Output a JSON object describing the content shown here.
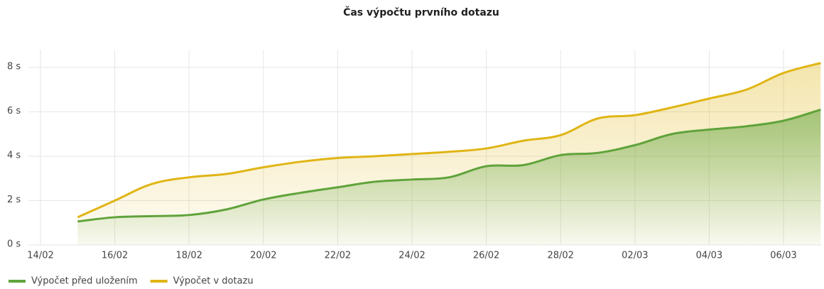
{
  "chart_data": {
    "type": "line",
    "title": "Čas výpočtu prvního dotazu",
    "categories": [
      "14/02",
      null,
      "16/02",
      null,
      "18/02",
      null,
      "20/02",
      null,
      "22/02",
      null,
      "24/02",
      null,
      "26/02",
      null,
      "28/02",
      null,
      "02/03",
      null,
      "04/03",
      null,
      "06/03",
      null
    ],
    "series": [
      {
        "name": "Výpočet před uložením",
        "color": "#5fa33a",
        "values": [
          null,
          1.06,
          1.25,
          1.3,
          1.35,
          1.6,
          2.05,
          2.35,
          2.6,
          2.85,
          2.95,
          3.05,
          3.55,
          3.6,
          4.05,
          4.15,
          4.5,
          5.0,
          5.2,
          5.35,
          5.6,
          6.1
        ]
      },
      {
        "name": "Výpočet v dotazu",
        "color": "#e0b515",
        "values": [
          null,
          1.25,
          2.0,
          2.75,
          3.05,
          3.2,
          3.5,
          3.75,
          3.92,
          4.0,
          4.1,
          4.2,
          4.35,
          4.7,
          4.95,
          5.7,
          5.85,
          6.2,
          6.6,
          7.0,
          7.75,
          8.2
        ]
      }
    ],
    "ylim": [
      0,
      8.8
    ],
    "yticks": [
      {
        "value": 0,
        "label": "0 s"
      },
      {
        "value": 2,
        "label": "2 s"
      },
      {
        "value": 4,
        "label": "4 s"
      },
      {
        "value": 6,
        "label": "6 s"
      },
      {
        "value": 8,
        "label": "8 s"
      }
    ],
    "grid": true,
    "legend": "bottom"
  }
}
